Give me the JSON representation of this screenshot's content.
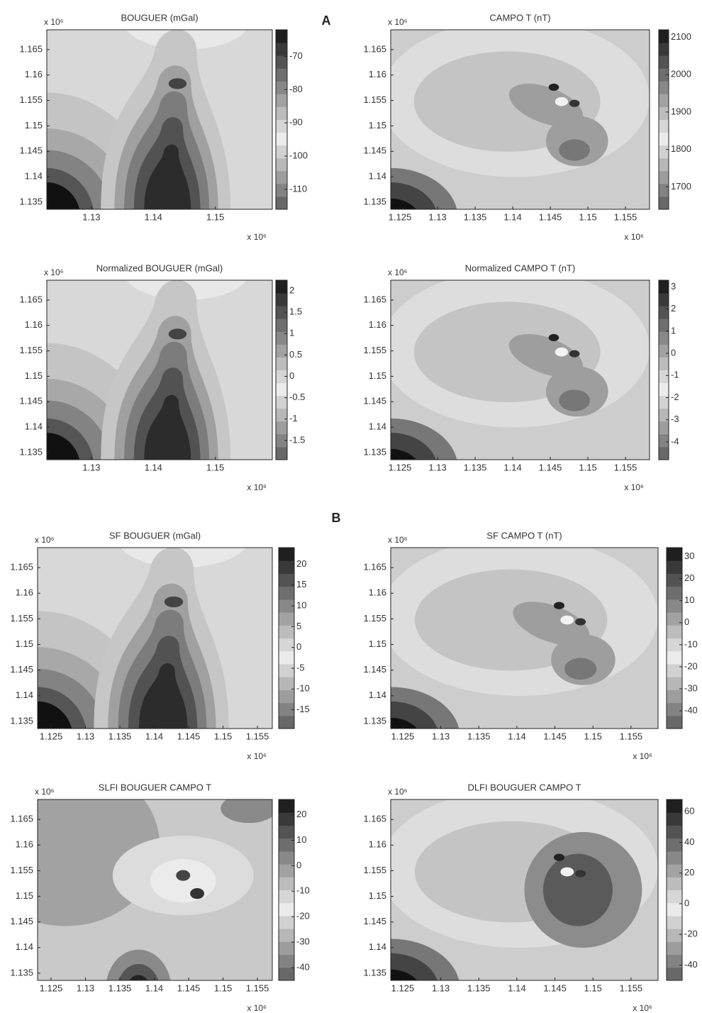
{
  "panel_labels": [
    "A",
    "B"
  ],
  "chart_data": [
    {
      "type": "contour",
      "title": "BOUGUER (mGal)",
      "x_multiplier": "x 10⁶",
      "y_multiplier": "x 10⁶",
      "xlim": [
        1.1228,
        1.1592
      ],
      "xticks": [
        1.13,
        1.14,
        1.15
      ],
      "ylim": [
        1.1336,
        1.1689
      ],
      "yticks": [
        1.135,
        1.14,
        1.145,
        1.15,
        1.155,
        1.16,
        1.165
      ],
      "clim": [
        -116,
        -62
      ],
      "cticks": [
        -70,
        -80,
        -90,
        -100,
        -110
      ]
    },
    {
      "type": "contour",
      "title": "CAMPO T (nT)",
      "x_multiplier": "x 10⁶",
      "y_multiplier": "x 10⁶",
      "xlim": [
        1.12377,
        1.1582
      ],
      "xticks": [
        1.125,
        1.13,
        1.135,
        1.14,
        1.145,
        1.15,
        1.155
      ],
      "ylim": [
        1.1336,
        1.1689
      ],
      "yticks": [
        1.135,
        1.14,
        1.145,
        1.15,
        1.155,
        1.16,
        1.165
      ],
      "clim": [
        1640,
        2120
      ],
      "cticks": [
        2100,
        2000,
        1900,
        1800,
        1700
      ]
    },
    {
      "type": "contour",
      "title": "Normalized BOUGUER (mGal)",
      "x_multiplier": "x 10⁶",
      "y_multiplier": "x 10⁶",
      "xlim": [
        1.1228,
        1.1592
      ],
      "xticks": [
        1.13,
        1.14,
        1.15
      ],
      "ylim": [
        1.1336,
        1.1689
      ],
      "yticks": [
        1.135,
        1.14,
        1.145,
        1.15,
        1.155,
        1.16,
        1.165
      ],
      "clim": [
        -1.95,
        2.25
      ],
      "cticks": [
        2,
        1.5,
        1,
        0.5,
        0,
        -0.5,
        -1,
        -1.5
      ]
    },
    {
      "type": "contour",
      "title": "Normalized CAMPO T (nT)",
      "x_multiplier": "x 10⁶",
      "y_multiplier": "x 10⁶",
      "xlim": [
        1.12377,
        1.1582
      ],
      "xticks": [
        1.125,
        1.13,
        1.135,
        1.14,
        1.145,
        1.15,
        1.155
      ],
      "ylim": [
        1.1336,
        1.1689
      ],
      "yticks": [
        1.135,
        1.14,
        1.145,
        1.15,
        1.155,
        1.16,
        1.165
      ],
      "clim": [
        -4.8,
        3.3
      ],
      "cticks": [
        3,
        2,
        1,
        0,
        -1,
        -2,
        -3,
        -4
      ]
    },
    {
      "type": "contour",
      "title": "SF BOUGUER (mGal)",
      "x_multiplier": "x 10⁶",
      "y_multiplier": "x 10⁶",
      "xlim": [
        1.12304,
        1.15716
      ],
      "xticks": [
        1.125,
        1.13,
        1.135,
        1.14,
        1.145,
        1.15,
        1.155
      ],
      "ylim": [
        1.1336,
        1.1689
      ],
      "yticks": [
        1.135,
        1.14,
        1.145,
        1.15,
        1.155,
        1.16,
        1.165
      ],
      "clim": [
        -19.5,
        24
      ],
      "cticks": [
        20,
        15,
        10,
        5,
        0,
        -5,
        -10,
        -15
      ]
    },
    {
      "type": "contour",
      "title": "SF CAMPO T (nT)",
      "x_multiplier": "x 10⁶",
      "y_multiplier": "x 10⁶",
      "xlim": [
        1.12342,
        1.15855
      ],
      "xticks": [
        1.125,
        1.13,
        1.135,
        1.14,
        1.145,
        1.15,
        1.155
      ],
      "ylim": [
        1.1336,
        1.1689
      ],
      "yticks": [
        1.135,
        1.14,
        1.145,
        1.15,
        1.155,
        1.16,
        1.165
      ],
      "clim": [
        -48,
        34
      ],
      "cticks": [
        30,
        20,
        10,
        0,
        -10,
        -20,
        -30,
        -40
      ]
    },
    {
      "type": "contour",
      "title": "SLFI BOUGUER CAMPO T",
      "x_multiplier": "x 10⁶",
      "y_multiplier": "x 10⁶",
      "xlim": [
        1.12304,
        1.15716
      ],
      "xticks": [
        1.125,
        1.13,
        1.135,
        1.14,
        1.145,
        1.15,
        1.155
      ],
      "ylim": [
        1.1336,
        1.1689
      ],
      "yticks": [
        1.135,
        1.14,
        1.145,
        1.15,
        1.155,
        1.16,
        1.165
      ],
      "clim": [
        -45,
        26
      ],
      "cticks": [
        20,
        10,
        0,
        -10,
        -20,
        -30,
        -40
      ]
    },
    {
      "type": "contour",
      "title": "DLFI BOUGUER CAMPO T",
      "x_multiplier": "x 10⁶",
      "y_multiplier": "x 10⁶",
      "xlim": [
        1.12342,
        1.15855
      ],
      "xticks": [
        1.125,
        1.13,
        1.135,
        1.14,
        1.145,
        1.15,
        1.155
      ],
      "ylim": [
        1.1336,
        1.1689
      ],
      "yticks": [
        1.135,
        1.14,
        1.145,
        1.15,
        1.155,
        1.16,
        1.165
      ],
      "clim": [
        -50,
        68
      ],
      "cticks": [
        60,
        40,
        20,
        0,
        -20,
        -40
      ]
    }
  ]
}
